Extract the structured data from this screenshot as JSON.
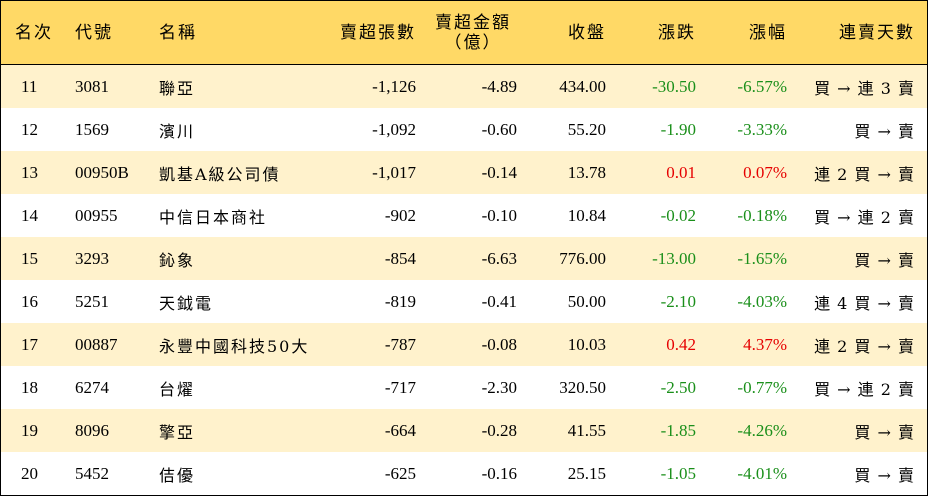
{
  "header": {
    "rank": "名次",
    "code": "代號",
    "name": "名稱",
    "net_sell_sheets": "賣超張數",
    "net_sell_amount_line1": "賣超金額",
    "net_sell_amount_line2": "（億）",
    "close": "收盤",
    "change": "漲跌",
    "change_pct": "漲幅",
    "consecutive_sell_days": "連賣天數"
  },
  "colors": {
    "header_bg": "#ffd966",
    "odd_row_bg": "#fff2cc",
    "up": "#e60000",
    "down": "#1a8f1a"
  },
  "rows": [
    {
      "rank": "11",
      "code": "3081",
      "name": "聯亞",
      "sheets": "-1,126",
      "amount": "-4.89",
      "close": "434.00",
      "change": "-30.50",
      "pct": "-6.57%",
      "trend": "買 → 連 3 賣",
      "dir": "down"
    },
    {
      "rank": "12",
      "code": "1569",
      "name": "濱川",
      "sheets": "-1,092",
      "amount": "-0.60",
      "close": "55.20",
      "change": "-1.90",
      "pct": "-3.33%",
      "trend": "買 → 賣",
      "dir": "down"
    },
    {
      "rank": "13",
      "code": "00950B",
      "name": "凱基A級公司債",
      "sheets": "-1,017",
      "amount": "-0.14",
      "close": "13.78",
      "change": "0.01",
      "pct": "0.07%",
      "trend": "連 2 買 → 賣",
      "dir": "up"
    },
    {
      "rank": "14",
      "code": "00955",
      "name": "中信日本商社",
      "sheets": "-902",
      "amount": "-0.10",
      "close": "10.84",
      "change": "-0.02",
      "pct": "-0.18%",
      "trend": "買 → 連 2 賣",
      "dir": "down"
    },
    {
      "rank": "15",
      "code": "3293",
      "name": "鈊象",
      "sheets": "-854",
      "amount": "-6.63",
      "close": "776.00",
      "change": "-13.00",
      "pct": "-1.65%",
      "trend": "買 → 賣",
      "dir": "down"
    },
    {
      "rank": "16",
      "code": "5251",
      "name": "天鉞電",
      "sheets": "-819",
      "amount": "-0.41",
      "close": "50.00",
      "change": "-2.10",
      "pct": "-4.03%",
      "trend": "連 4 買 → 賣",
      "dir": "down"
    },
    {
      "rank": "17",
      "code": "00887",
      "name": "永豐中國科技50大",
      "sheets": "-787",
      "amount": "-0.08",
      "close": "10.03",
      "change": "0.42",
      "pct": "4.37%",
      "trend": "連 2 買 → 賣",
      "dir": "up"
    },
    {
      "rank": "18",
      "code": "6274",
      "name": "台燿",
      "sheets": "-717",
      "amount": "-2.30",
      "close": "320.50",
      "change": "-2.50",
      "pct": "-0.77%",
      "trend": "買 → 連 2 賣",
      "dir": "down"
    },
    {
      "rank": "19",
      "code": "8096",
      "name": "擎亞",
      "sheets": "-664",
      "amount": "-0.28",
      "close": "41.55",
      "change": "-1.85",
      "pct": "-4.26%",
      "trend": "買 → 賣",
      "dir": "down"
    },
    {
      "rank": "20",
      "code": "5452",
      "name": "佶優",
      "sheets": "-625",
      "amount": "-0.16",
      "close": "25.15",
      "change": "-1.05",
      "pct": "-4.01%",
      "trend": "買 → 賣",
      "dir": "down"
    }
  ]
}
